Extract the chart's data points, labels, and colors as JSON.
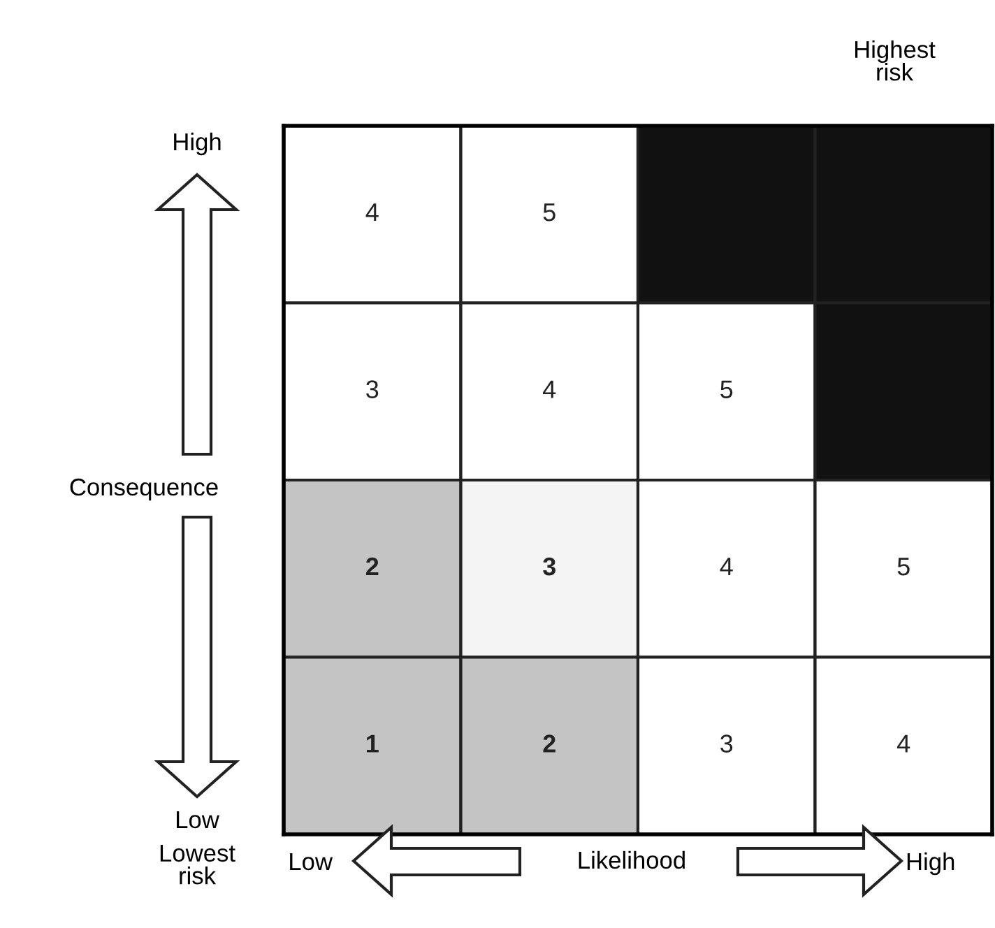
{
  "chart_data": {
    "type": "heatmap",
    "categories": [
      null,
      null,
      null,
      null
    ],
    "y_categories": [
      null,
      null,
      null,
      null
    ],
    "cells": [
      [
        4,
        5,
        null,
        null
      ],
      [
        3,
        4,
        5,
        null
      ],
      [
        2,
        3,
        4,
        5
      ],
      [
        1,
        2,
        3,
        4
      ]
    ],
    "colors": [
      [
        "#ffffff",
        "#ffffff",
        "#111111",
        "#111111"
      ],
      [
        "#ffffff",
        "#ffffff",
        "#ffffff",
        "#111111"
      ],
      [
        "#c4c4c4",
        "#f4f4f4",
        "#ffffff",
        "#ffffff"
      ],
      [
        "#c4c4c4",
        "#c4c4c4",
        "#ffffff",
        "#ffffff"
      ]
    ],
    "xlabel": "Likelihood",
    "ylabel": "Consequence",
    "annotations": [
      "Highest\nrisk",
      "High",
      "Low",
      "Lowest\nrisk",
      "Low",
      "High"
    ],
    "data_labels": true
  }
}
